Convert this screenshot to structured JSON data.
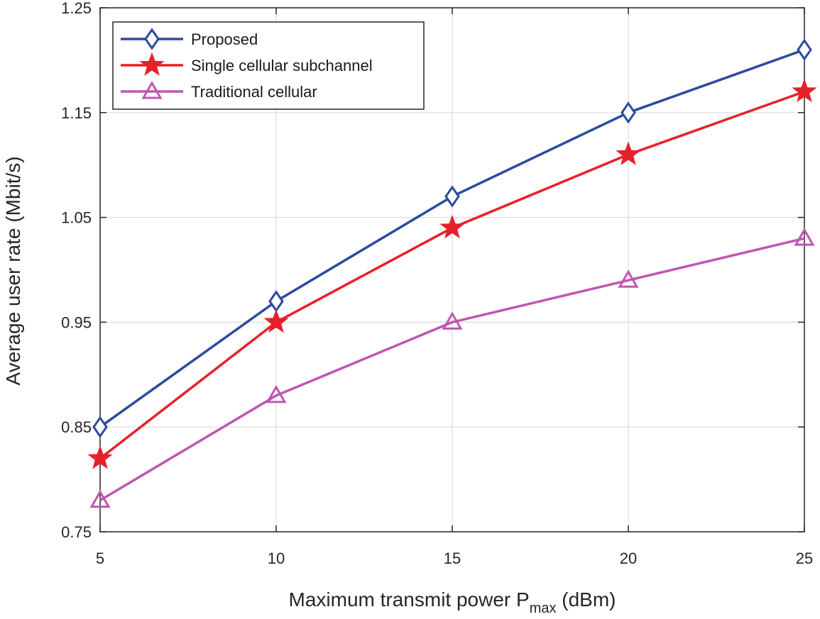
{
  "chart_data": {
    "type": "line",
    "title": "",
    "xlabel": {
      "main": "Maximum transmit power P",
      "sub": "max",
      "unit": " (dBm)"
    },
    "ylabel": "Average user rate (Mbit/s)",
    "x": [
      5,
      10,
      15,
      20,
      25
    ],
    "xlim": [
      5,
      25
    ],
    "ylim": [
      0.75,
      1.25
    ],
    "xticks": [
      5,
      10,
      15,
      20,
      25
    ],
    "yticks": [
      0.75,
      0.85,
      0.95,
      1.05,
      1.15,
      1.25
    ],
    "ytick_labels": [
      "0.75",
      "0.85",
      "0.95",
      "1.05",
      "1.15",
      "1.25"
    ],
    "grid": true,
    "legend_position": "top-left",
    "series": [
      {
        "name": "Proposed",
        "values": [
          0.85,
          0.97,
          1.07,
          1.15,
          1.21
        ],
        "color": "#2c4a9e",
        "marker": "diamond"
      },
      {
        "name": "Single cellular subchannel",
        "values": [
          0.82,
          0.95,
          1.04,
          1.11,
          1.17
        ],
        "color": "#e8202a",
        "marker": "star"
      },
      {
        "name": "Traditional cellular",
        "values": [
          0.78,
          0.88,
          0.95,
          0.99,
          1.03
        ],
        "color": "#bf57b0",
        "marker": "triangle"
      }
    ]
  }
}
